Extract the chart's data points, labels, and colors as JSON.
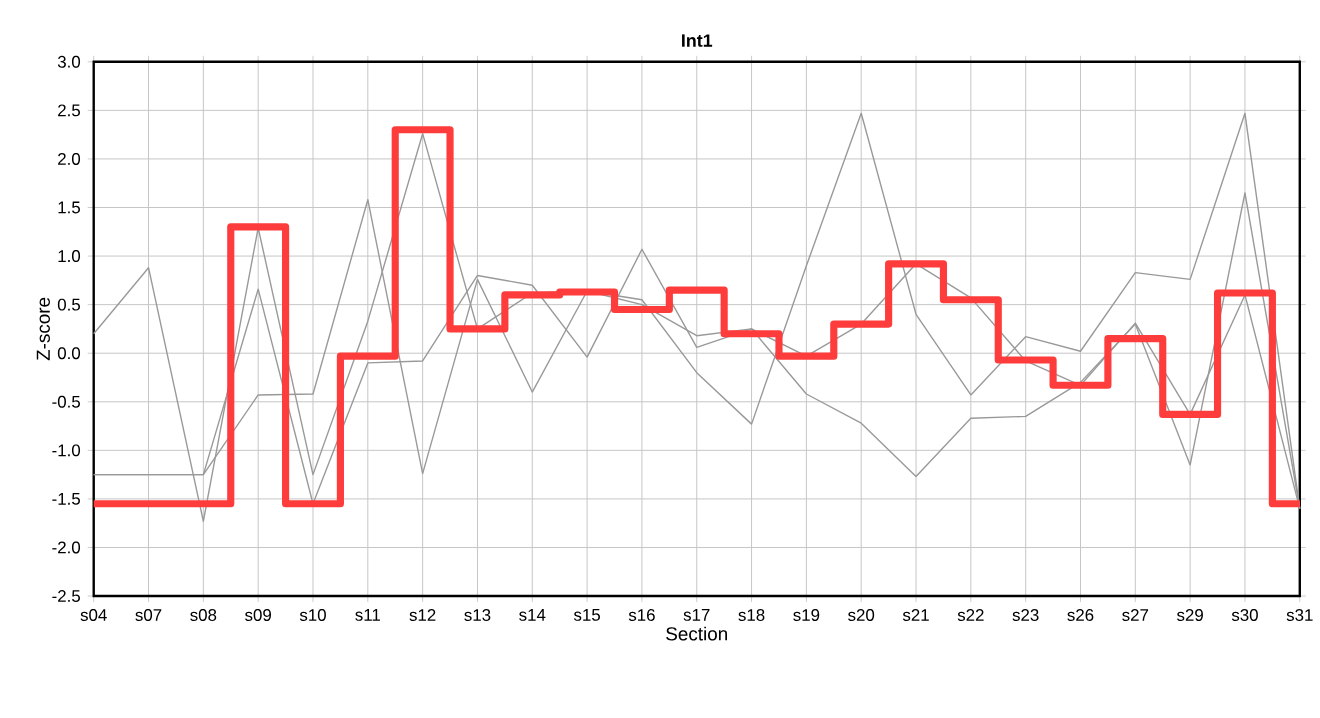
{
  "chart_data": {
    "type": "line",
    "title": "Int1",
    "xlabel": "Section",
    "ylabel": "Z-score",
    "categories": [
      "s04",
      "s07",
      "s08",
      "s09",
      "s10",
      "s11",
      "s12",
      "s13",
      "s14",
      "s15",
      "s16",
      "s17",
      "s18",
      "s19",
      "s20",
      "s21",
      "s22",
      "s23",
      "s26",
      "s27",
      "s29",
      "s30",
      "s31"
    ],
    "series": [
      {
        "color": "#999999",
        "values": [
          0.2,
          0.88,
          -1.73,
          1.29,
          -1.25,
          0.33,
          2.26,
          0.25,
          0.62,
          0.64,
          0.5,
          0.18,
          0.25,
          -0.03,
          0.3,
          0.92,
          0.57,
          -0.08,
          -0.33,
          0.31,
          -0.63,
          0.6,
          -1.6
        ]
      },
      {
        "color": "#999999",
        "values": [
          -1.25,
          -1.25,
          -1.25,
          0.66,
          -1.55,
          -0.1,
          -0.08,
          0.8,
          0.7,
          -0.04,
          1.07,
          0.06,
          0.25,
          -0.42,
          -0.72,
          -1.27,
          -0.67,
          -0.65,
          -0.3,
          0.3,
          -1.15,
          1.65,
          -1.6
        ]
      },
      {
        "color": "#999999",
        "values": [
          -1.25,
          -1.25,
          -1.25,
          -0.43,
          -0.42,
          1.58,
          -1.24,
          0.76,
          -0.4,
          0.64,
          0.55,
          -0.2,
          -0.73,
          0.9,
          2.47,
          0.4,
          -0.43,
          0.17,
          0.02,
          0.83,
          0.76,
          2.47,
          -1.6
        ]
      },
      {
        "type": "step",
        "color": "#ff3c3c",
        "values": [
          -1.55,
          -1.55,
          -1.55,
          1.3,
          -1.55,
          -0.03,
          2.3,
          0.25,
          0.6,
          0.63,
          0.45,
          0.65,
          0.2,
          -0.03,
          0.3,
          0.92,
          0.55,
          -0.07,
          -0.33,
          0.15,
          -0.63,
          0.62,
          -1.55
        ]
      }
    ],
    "ylim": [
      -2.5,
      3.0
    ],
    "yticks": [
      {
        "value": -2.5,
        "label": "-2.5"
      },
      {
        "value": -2.0,
        "label": "-2.0"
      },
      {
        "value": -1.5,
        "label": "-1.5"
      },
      {
        "value": -1.0,
        "label": "-1.0"
      },
      {
        "value": -0.5,
        "label": "-0.5"
      },
      {
        "value": 0.0,
        "label": "0.0"
      },
      {
        "value": 0.5,
        "label": "0.5"
      },
      {
        "value": 1.0,
        "label": "1.0"
      },
      {
        "value": 1.5,
        "label": "1.5"
      },
      {
        "value": 2.0,
        "label": "2.0"
      },
      {
        "value": 2.5,
        "label": "2.5"
      },
      {
        "value": 3.0,
        "label": "3.0"
      }
    ],
    "grid": true
  }
}
